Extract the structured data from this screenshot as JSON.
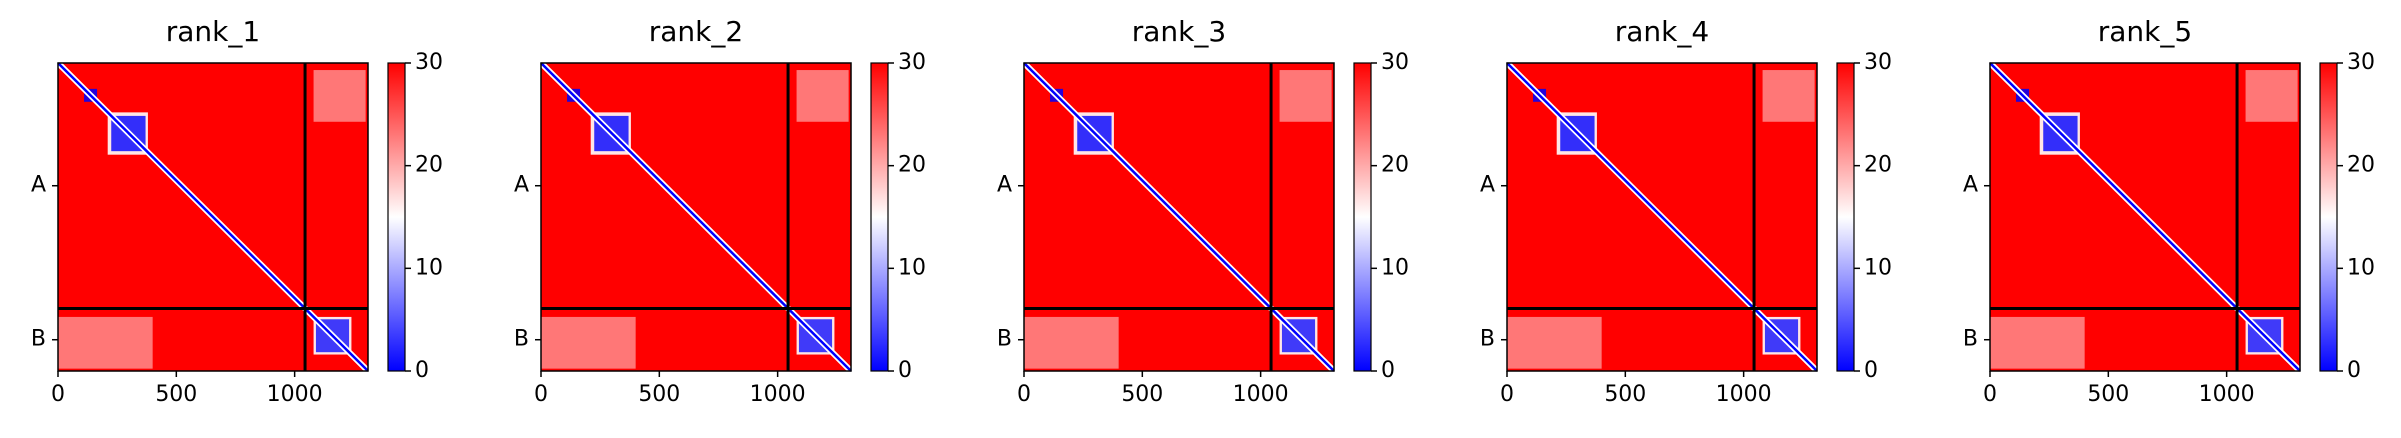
{
  "chart_data": [
    {
      "type": "heatmap",
      "title": "rank_1",
      "xlim": [
        0,
        1310
      ],
      "ylim": [
        1310,
        0
      ],
      "xticks": [
        0,
        500,
        1000
      ],
      "yticks": [
        {
          "value": 522,
          "label": "A"
        },
        {
          "value": 1177,
          "label": "B"
        }
      ],
      "clim": [
        0,
        30
      ],
      "cticks": [
        0,
        10,
        20,
        30
      ],
      "colors": [
        "#0000ff",
        "#ffffff",
        "#ff0000"
      ]
    },
    {
      "type": "heatmap",
      "title": "rank_2",
      "xlim": [
        0,
        1310
      ],
      "ylim": [
        1310,
        0
      ],
      "xticks": [
        0,
        500,
        1000
      ],
      "yticks": [
        {
          "value": 522,
          "label": "A"
        },
        {
          "value": 1177,
          "label": "B"
        }
      ],
      "clim": [
        0,
        30
      ],
      "cticks": [
        0,
        10,
        20,
        30
      ],
      "colors": [
        "#0000ff",
        "#ffffff",
        "#ff0000"
      ]
    },
    {
      "type": "heatmap",
      "title": "rank_3",
      "xlim": [
        0,
        1310
      ],
      "ylim": [
        1310,
        0
      ],
      "xticks": [
        0,
        500,
        1000
      ],
      "yticks": [
        {
          "value": 522,
          "label": "A"
        },
        {
          "value": 1177,
          "label": "B"
        }
      ],
      "clim": [
        0,
        30
      ],
      "cticks": [
        0,
        10,
        20,
        30
      ],
      "colors": [
        "#0000ff",
        "#ffffff",
        "#ff0000"
      ]
    },
    {
      "type": "heatmap",
      "title": "rank_4",
      "xlim": [
        0,
        1310
      ],
      "ylim": [
        1310,
        0
      ],
      "xticks": [
        0,
        500,
        1000
      ],
      "yticks": [
        {
          "value": 522,
          "label": "A"
        },
        {
          "value": 1177,
          "label": "B"
        }
      ],
      "clim": [
        0,
        30
      ],
      "cticks": [
        0,
        10,
        20,
        30
      ],
      "colors": [
        "#0000ff",
        "#ffffff",
        "#ff0000"
      ]
    },
    {
      "type": "heatmap",
      "title": "rank_5",
      "xlim": [
        0,
        1310
      ],
      "ylim": [
        1310,
        0
      ],
      "xticks": [
        0,
        500,
        1000
      ],
      "yticks": [
        {
          "value": 522,
          "label": "A"
        },
        {
          "value": 1177,
          "label": "B"
        }
      ],
      "clim": [
        0,
        30
      ],
      "cticks": [
        0,
        10,
        20,
        30
      ],
      "colors": [
        "#0000ff",
        "#ffffff",
        "#ff0000"
      ]
    }
  ]
}
